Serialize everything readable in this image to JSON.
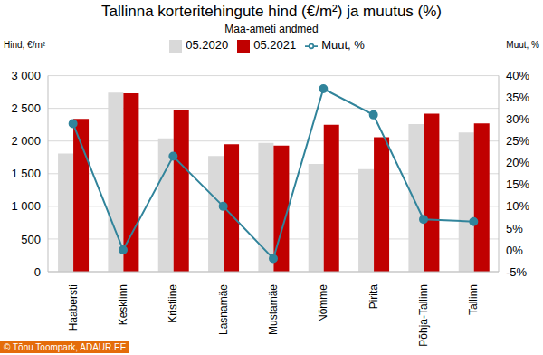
{
  "chart_data": {
    "type": "bar",
    "title": "Tallinna korteritehingute hind (€/m²) ja muutus (%)",
    "subtitle": "Maa-ameti andmed",
    "y_label": "Hind, €/m²",
    "y2_label": "Muut, %",
    "source": "© Tõnu Toompark, ADAUR.EE",
    "categories": [
      "Haabersti",
      "Kesklinn",
      "Kristiine",
      "Lasnamäe",
      "Mustamäe",
      "Nõmme",
      "Pirita",
      "Põhja-Tallinn",
      "Tallinn"
    ],
    "series": [
      {
        "name": "05.2020",
        "type": "bar",
        "color": "#d9d9d9",
        "values": [
          1810,
          2740,
          2040,
          1770,
          1970,
          1650,
          1570,
          2260,
          2130
        ]
      },
      {
        "name": "05.2021",
        "type": "bar",
        "color": "#c00000",
        "values": [
          2340,
          2730,
          2470,
          1950,
          1930,
          2250,
          2060,
          2420,
          2270
        ]
      },
      {
        "name": "Muut, %",
        "type": "line",
        "axis": "y2",
        "color": "#31849b",
        "marker": "circle",
        "values": [
          29,
          0,
          21.5,
          10,
          -2,
          37,
          31,
          7,
          6.5
        ]
      }
    ],
    "ylim": [
      0,
      3000
    ],
    "yticks": [
      0,
      500,
      {
        "value": 1000,
        "label": "1 000"
      },
      {
        "value": 1500,
        "label": "1 500"
      },
      {
        "value": 2000,
        "label": "2 000"
      },
      {
        "value": 2500,
        "label": "2 500"
      },
      {
        "value": 3000,
        "label": "3 000"
      }
    ],
    "y2lim": [
      -5,
      40
    ],
    "y2ticks": [
      {
        "value": -5,
        "label": "-5%"
      },
      {
        "value": 0,
        "label": "0%"
      },
      {
        "value": 5,
        "label": "5%"
      },
      {
        "value": 10,
        "label": "10%"
      },
      {
        "value": 15,
        "label": "15%"
      },
      {
        "value": 20,
        "label": "20%"
      },
      {
        "value": 25,
        "label": "25%"
      },
      {
        "value": 30,
        "label": "30%"
      },
      {
        "value": 35,
        "label": "35%"
      },
      {
        "value": 40,
        "label": "40%"
      }
    ],
    "grid": true,
    "legend": "top"
  }
}
